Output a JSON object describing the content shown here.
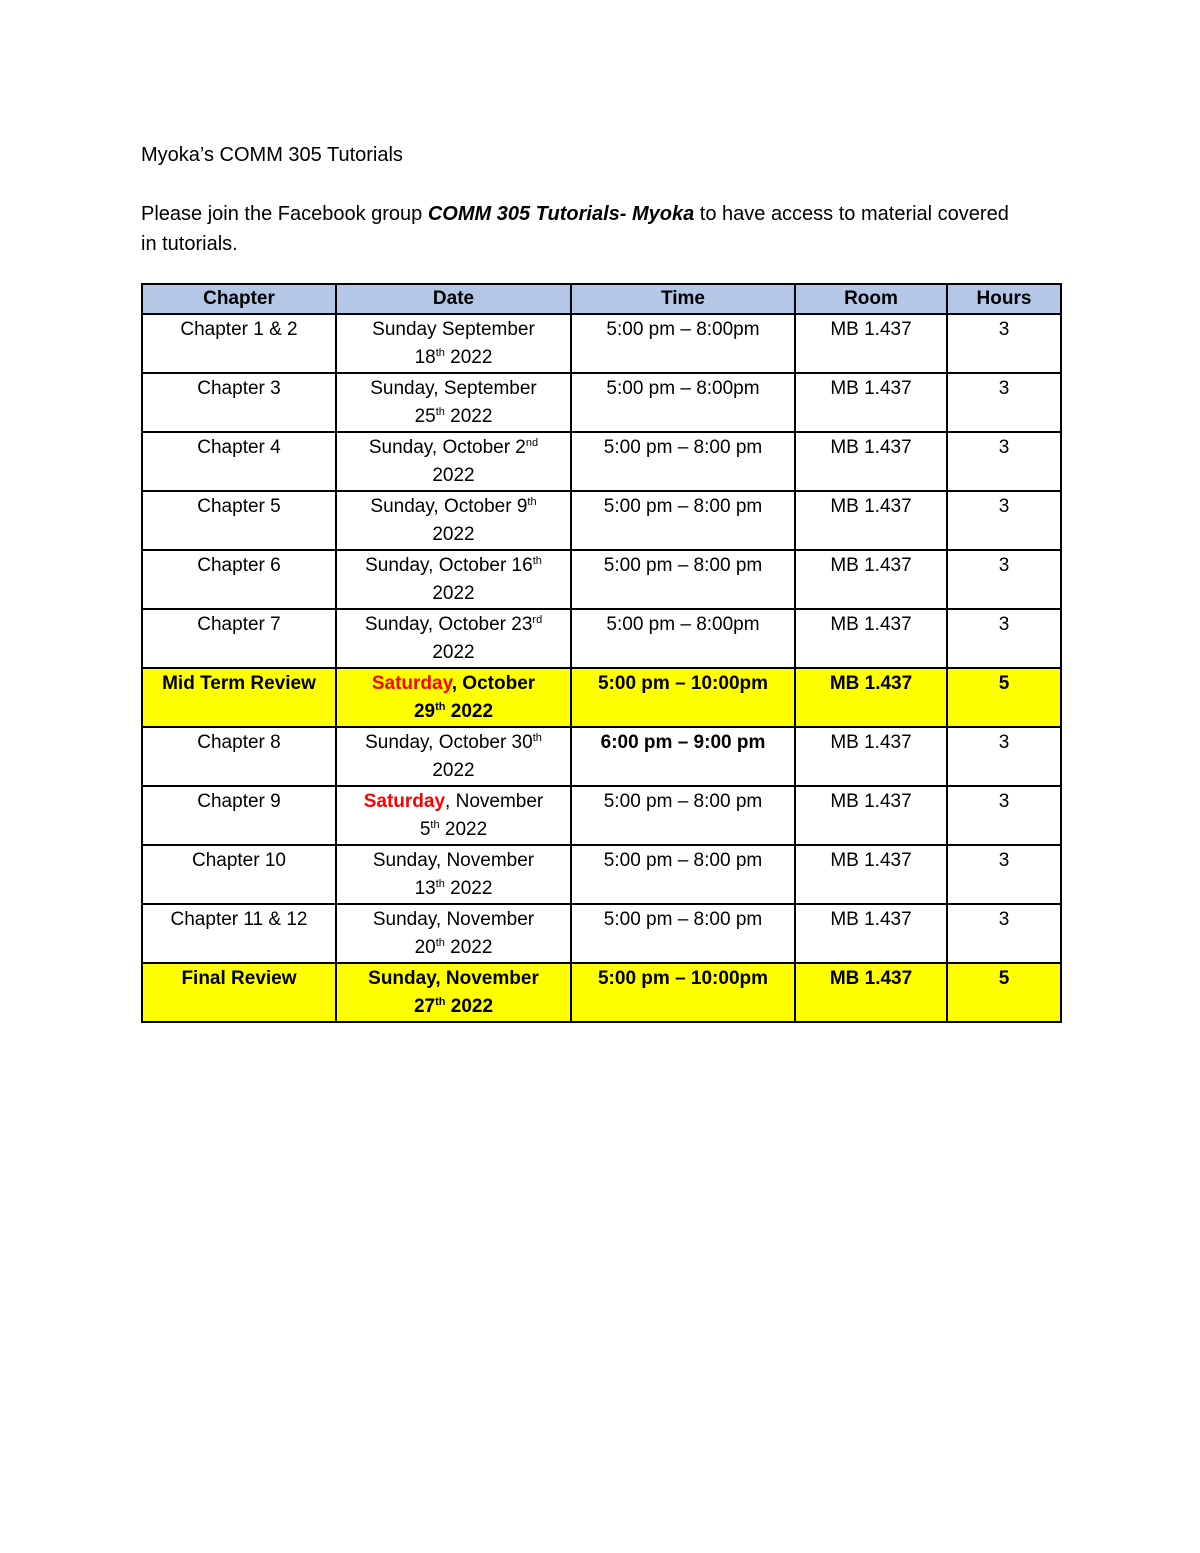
{
  "document": {
    "title": "Myoka’s COMM 305 Tutorials",
    "intro_before": "Please join the Facebook group ",
    "intro_group": "COMM 305 Tutorials- Myoka",
    "intro_after": " to have access to material covered in tutorials."
  },
  "colors": {
    "header_bg": "#b4c7e7",
    "highlight_bg": "#ffff00",
    "saturday_text": "#ff0000"
  },
  "table": {
    "headers": [
      "Chapter",
      "Date",
      "Time",
      "Room",
      "Hours"
    ],
    "rows": [
      {
        "chapter": "Chapter 1 & 2",
        "date": {
          "red": "",
          "l1": "Sunday September",
          "sup1": "",
          "l2a": "18",
          "sup2": "th",
          "l2b": " 2022"
        },
        "time": "5:00 pm – 8:00pm",
        "room": "MB 1.437",
        "hours": "3",
        "highlight": false
      },
      {
        "chapter": "Chapter 3",
        "date": {
          "red": "",
          "l1": "Sunday, September",
          "sup1": "",
          "l2a": "25",
          "sup2": "th",
          "l2b": " 2022"
        },
        "time": "5:00 pm – 8:00pm",
        "room": "MB 1.437",
        "hours": "3",
        "highlight": false
      },
      {
        "chapter": "Chapter 4",
        "date": {
          "red": "",
          "l1": "Sunday, October 2",
          "sup1": "nd",
          "l2a": "2022",
          "sup2": "",
          "l2b": ""
        },
        "time": "5:00 pm – 8:00 pm",
        "room": "MB 1.437",
        "hours": "3",
        "highlight": false
      },
      {
        "chapter": "Chapter 5",
        "date": {
          "red": "",
          "l1": "Sunday, October 9",
          "sup1": "th",
          "l2a": "2022",
          "sup2": "",
          "l2b": ""
        },
        "time": "5:00 pm – 8:00 pm",
        "room": "MB 1.437",
        "hours": "3",
        "highlight": false
      },
      {
        "chapter": "Chapter 6",
        "date": {
          "red": "",
          "l1": "Sunday, October 16",
          "sup1": "th",
          "l2a": "2022",
          "sup2": "",
          "l2b": ""
        },
        "time": "5:00 pm – 8:00 pm",
        "room": "MB 1.437",
        "hours": "3",
        "highlight": false
      },
      {
        "chapter": "Chapter 7",
        "date": {
          "red": "",
          "l1": "Sunday, October 23",
          "sup1": "rd",
          "l2a": "2022",
          "sup2": "",
          "l2b": ""
        },
        "time": "5:00 pm – 8:00pm",
        "room": "MB 1.437",
        "hours": "3",
        "highlight": false
      },
      {
        "chapter": "Mid Term Review",
        "date": {
          "red": "Saturday",
          "l1": ", October",
          "sup1": "",
          "l2a": "29",
          "sup2": "th",
          "l2b": " 2022"
        },
        "time": "5:00 pm – 10:00pm",
        "room": "MB 1.437",
        "hours": "5",
        "highlight": true
      },
      {
        "chapter": "Chapter 8",
        "date": {
          "red": "",
          "l1": "Sunday, October 30",
          "sup1": "th",
          "l2a": "2022",
          "sup2": "",
          "l2b": ""
        },
        "time": "6:00 pm – 9:00 pm",
        "room": "MB 1.437",
        "hours": "3",
        "highlight": false,
        "bold_time": true
      },
      {
        "chapter": "Chapter 9",
        "date": {
          "red": "Saturday",
          "l1": ", November",
          "sup1": "",
          "l2a": "5",
          "sup2": "th",
          "l2b": " 2022"
        },
        "time": "5:00 pm – 8:00 pm",
        "room": "MB 1.437",
        "hours": "3",
        "highlight": false
      },
      {
        "chapter": "Chapter 10",
        "date": {
          "red": "",
          "l1": "Sunday, November",
          "sup1": "",
          "l2a": "13",
          "sup2": "th",
          "l2b": " 2022"
        },
        "time": "5:00 pm – 8:00 pm",
        "room": "MB 1.437",
        "hours": "3",
        "highlight": false
      },
      {
        "chapter": "Chapter 11 & 12",
        "date": {
          "red": "",
          "l1": "Sunday, November",
          "sup1": "",
          "l2a": "20",
          "sup2": "th",
          "l2b": " 2022"
        },
        "time": "5:00 pm – 8:00 pm",
        "room": "MB 1.437",
        "hours": "3",
        "highlight": false
      },
      {
        "chapter": "Final Review",
        "date": {
          "red": "",
          "l1": "Sunday, November",
          "sup1": "",
          "l2a": "27",
          "sup2": "th",
          "l2b": " 2022"
        },
        "time": "5:00 pm – 10:00pm",
        "room": "MB 1.437",
        "hours": "5",
        "highlight": true
      }
    ]
  }
}
